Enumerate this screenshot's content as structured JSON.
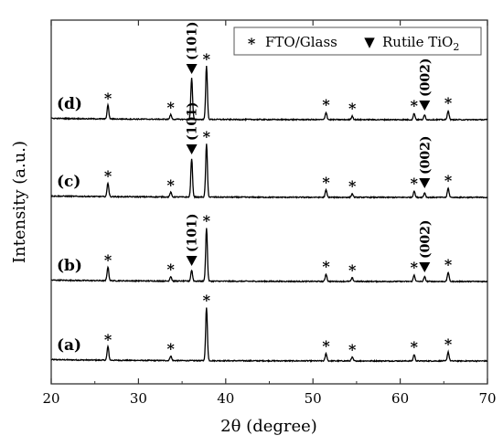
{
  "chart_data": {
    "type": "line",
    "xlabel": "2θ (degree)",
    "ylabel": "Intensity (a.u.)",
    "xlim": [
      20,
      70
    ],
    "x_ticks": [
      "20",
      "30",
      "40",
      "50",
      "60",
      "70"
    ],
    "y_ticks_shown": false,
    "legend": {
      "placement": "top-right",
      "entries": [
        {
          "marker": "*",
          "label": "FTO/Glass"
        },
        {
          "marker": "▼",
          "label_main": "Rutile TiO",
          "label_sub": "2"
        }
      ]
    },
    "fto_peaks": [
      26.5,
      33.7,
      37.8,
      51.5,
      54.5,
      61.6,
      65.5
    ],
    "tio2_peaks": [
      {
        "x": 36.1,
        "label": "(101)"
      },
      {
        "x": 62.8,
        "label": "(002)"
      }
    ],
    "series": [
      {
        "name": "(a)",
        "peak_heights": {
          "26.5": 15,
          "33.7": 5,
          "37.8": 58,
          "51.5": 8,
          "54.5": 4,
          "61.6": 7,
          "65.5": 10
        },
        "rutile_peaks": []
      },
      {
        "name": "(b)",
        "peak_heights": {
          "26.5": 15,
          "33.7": 5,
          "36.1": 12,
          "37.8": 58,
          "51.5": 8,
          "54.5": 4,
          "61.6": 7,
          "62.8": 5,
          "65.5": 10
        },
        "rutile_peaks": [
          "(101)",
          "(002)"
        ]
      },
      {
        "name": "(c)",
        "peak_heights": {
          "26.5": 15,
          "33.7": 5,
          "36.1": 42,
          "37.8": 58,
          "51.5": 8,
          "54.5": 4,
          "61.6": 7,
          "62.8": 5,
          "65.5": 10
        },
        "rutile_peaks": [
          "(101)",
          "(002)"
        ]
      },
      {
        "name": "(d)",
        "peak_heights": {
          "26.5": 15,
          "33.7": 5,
          "36.1": 45,
          "37.8": 58,
          "51.5": 8,
          "54.5": 4,
          "61.6": 7,
          "62.8": 5,
          "65.5": 10
        },
        "rutile_peaks": [
          "(101)",
          "(002)"
        ]
      }
    ],
    "colors": {
      "line": "#000000",
      "frame": "#333333",
      "legend_border": "#555555"
    }
  }
}
